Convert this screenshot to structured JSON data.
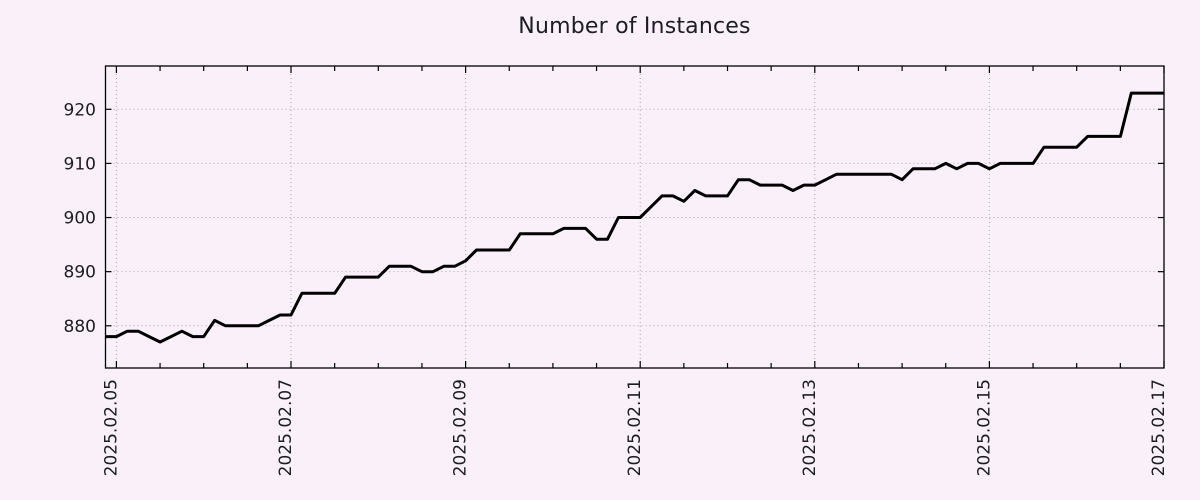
{
  "page": {
    "background_color": "#faf0fa",
    "text_color": "#1c1c24"
  },
  "chart_data": {
    "type": "line",
    "title": "Number of Instances",
    "xlabel": "",
    "ylabel": "",
    "legend": "none",
    "grid": true,
    "grid_style": "dotted",
    "grid_color": "#a8a8a8",
    "axis_color": "#000000",
    "line_color": "#000000",
    "line_width": 3,
    "x_start": "2025-02-04 21:00",
    "x_step_hours": 3,
    "x_tick_labels": [
      "2025.02.05",
      "2025.02.07",
      "2025.02.09",
      "2025.02.11",
      "2025.02.13",
      "2025.02.15",
      "2025.02.17"
    ],
    "x_first_major_index": 1,
    "x_major_every_samples": 16,
    "x_minor_every_samples": 4,
    "y_ticks": [
      880,
      890,
      900,
      910,
      920
    ],
    "ylim": [
      872.2,
      928.0
    ],
    "series": [
      {
        "name": "instances",
        "values": [
          878,
          878,
          879,
          879,
          878,
          877,
          878,
          879,
          878,
          878,
          881,
          880,
          880,
          880,
          880,
          881,
          882,
          882,
          886,
          886,
          886,
          886,
          889,
          889,
          889,
          889,
          891,
          891,
          891,
          890,
          890,
          891,
          891,
          892,
          894,
          894,
          894,
          894,
          897,
          897,
          897,
          897,
          898,
          898,
          898,
          896,
          896,
          900,
          900,
          900,
          902,
          904,
          904,
          903,
          905,
          904,
          904,
          904,
          907,
          907,
          906,
          906,
          906,
          905,
          906,
          906,
          907,
          908,
          908,
          908,
          908,
          908,
          908,
          907,
          909,
          909,
          909,
          910,
          909,
          910,
          910,
          909,
          910,
          910,
          910,
          910,
          913,
          913,
          913,
          913,
          915,
          915,
          915,
          915,
          923,
          923,
          923,
          923
        ]
      }
    ]
  }
}
